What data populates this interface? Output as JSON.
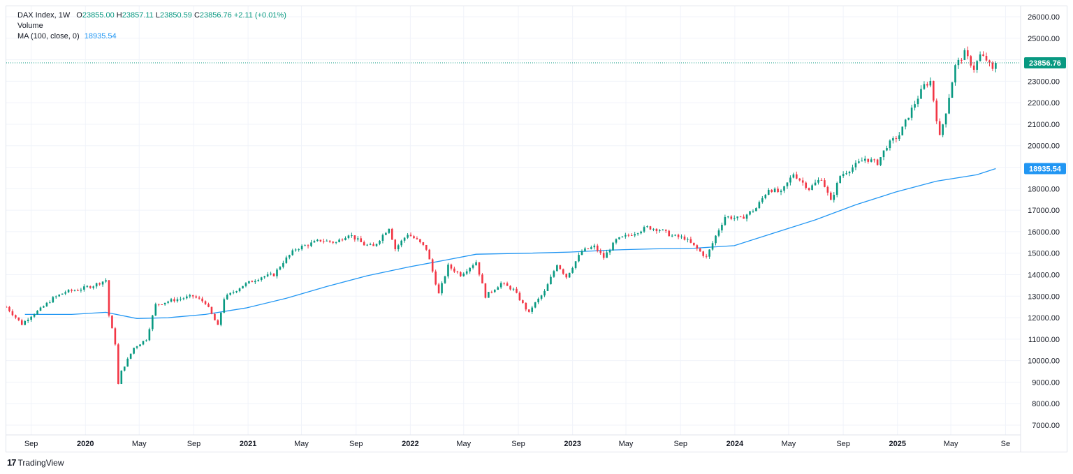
{
  "legend": {
    "symbol": "DAX Index, 1W",
    "open_label": "O",
    "open": "23855.00",
    "high_label": "H",
    "high": "23857.11",
    "low_label": "L",
    "low": "23850.59",
    "close_label": "C",
    "close": "23856.76",
    "change": "+2.11 (+0.01%)",
    "volume_label": "Volume",
    "ma_label": "MA (100, close, 0)",
    "ma_value": "18935.54"
  },
  "brand": {
    "name": "TradingView",
    "logo_glyph": "17"
  },
  "colors": {
    "up": "#089981",
    "down": "#f23645",
    "ma": "#2196f3",
    "grid": "#f0f3fa",
    "last_price": "#089981"
  },
  "chart_data": {
    "type": "candlestick",
    "title": "DAX Index, 1W",
    "price_badge": "23856.76",
    "ma_badge": "18935.54",
    "last_price": 23856.76,
    "ma_last": 18935.54,
    "ylim": [
      6500,
      26500
    ],
    "y_ticks": [
      7000,
      8000,
      9000,
      10000,
      11000,
      12000,
      13000,
      14000,
      15000,
      16000,
      17000,
      18000,
      19000,
      20000,
      21000,
      22000,
      23000,
      24000,
      25000,
      26000
    ],
    "y_tick_labels": [
      "7000.00",
      "8000.00",
      "9000.00",
      "10000.00",
      "11000.00",
      "12000.00",
      "13000.00",
      "14000.00",
      "15000.00",
      "16000.00",
      "17000.00",
      "18000.00",
      "19000.00",
      "20000.00",
      "21000.00",
      "22000.00",
      "23000.00",
      "24000.00",
      "25000.00",
      "26000.00"
    ],
    "x_range": [
      "2019-07-07",
      "2025-10-05"
    ],
    "x_ticks": [
      {
        "date": "2019-09-01",
        "label": "Sep",
        "bold": false
      },
      {
        "date": "2020-01-01",
        "label": "2020",
        "bold": true
      },
      {
        "date": "2020-05-01",
        "label": "May",
        "bold": false
      },
      {
        "date": "2020-09-01",
        "label": "Sep",
        "bold": false
      },
      {
        "date": "2021-01-01",
        "label": "2021",
        "bold": true
      },
      {
        "date": "2021-05-01",
        "label": "May",
        "bold": false
      },
      {
        "date": "2021-09-01",
        "label": "Sep",
        "bold": false
      },
      {
        "date": "2022-01-01",
        "label": "2022",
        "bold": true
      },
      {
        "date": "2022-05-01",
        "label": "May",
        "bold": false
      },
      {
        "date": "2022-09-01",
        "label": "Sep",
        "bold": false
      },
      {
        "date": "2023-01-01",
        "label": "2023",
        "bold": true
      },
      {
        "date": "2023-05-01",
        "label": "May",
        "bold": false
      },
      {
        "date": "2023-09-01",
        "label": "Sep",
        "bold": false
      },
      {
        "date": "2024-01-01",
        "label": "2024",
        "bold": true
      },
      {
        "date": "2024-05-01",
        "label": "May",
        "bold": false
      },
      {
        "date": "2024-09-01",
        "label": "Sep",
        "bold": false
      },
      {
        "date": "2025-01-01",
        "label": "2025",
        "bold": true
      },
      {
        "date": "2025-05-01",
        "label": "May",
        "bold": false
      },
      {
        "date": "2025-09-01",
        "label": "Se",
        "bold": false
      }
    ],
    "close_path": [
      [
        "2019-07-07",
        12500
      ],
      [
        "2019-08-11",
        11700
      ],
      [
        "2019-09-01",
        12100
      ],
      [
        "2019-09-22",
        12400
      ],
      [
        "2019-10-20",
        12900
      ],
      [
        "2019-11-17",
        13200
      ],
      [
        "2019-12-15",
        13300
      ],
      [
        "2020-01-19",
        13500
      ],
      [
        "2020-02-16",
        13750
      ],
      [
        "2020-02-23",
        12100
      ],
      [
        "2020-03-08",
        10800
      ],
      [
        "2020-03-15",
        8900
      ],
      [
        "2020-03-22",
        9500
      ],
      [
        "2020-04-19",
        10600
      ],
      [
        "2020-05-17",
        11000
      ],
      [
        "2020-06-07",
        12600
      ],
      [
        "2020-07-12",
        12800
      ],
      [
        "2020-08-30",
        13000
      ],
      [
        "2020-09-27",
        12700
      ],
      [
        "2020-10-25",
        11600
      ],
      [
        "2020-11-08",
        12900
      ],
      [
        "2020-12-20",
        13500
      ],
      [
        "2021-01-31",
        13900
      ],
      [
        "2021-02-28",
        14000
      ],
      [
        "2021-03-21",
        14600
      ],
      [
        "2021-04-18",
        15200
      ],
      [
        "2021-05-16",
        15400
      ],
      [
        "2021-06-13",
        15600
      ],
      [
        "2021-07-18",
        15500
      ],
      [
        "2021-08-15",
        15900
      ],
      [
        "2021-09-19",
        15400
      ],
      [
        "2021-10-10",
        15300
      ],
      [
        "2021-11-14",
        16200
      ],
      [
        "2021-11-28",
        15200
      ],
      [
        "2021-12-26",
        15900
      ],
      [
        "2022-01-16",
        15600
      ],
      [
        "2022-02-06",
        15200
      ],
      [
        "2022-03-06",
        13100
      ],
      [
        "2022-03-27",
        14400
      ],
      [
        "2022-04-24",
        14000
      ],
      [
        "2022-05-29",
        14600
      ],
      [
        "2022-06-19",
        13000
      ],
      [
        "2022-07-24",
        13600
      ],
      [
        "2022-08-21",
        13300
      ],
      [
        "2022-09-25",
        12200
      ],
      [
        "2022-10-02",
        12500
      ],
      [
        "2022-10-30",
        13200
      ],
      [
        "2022-11-27",
        14500
      ],
      [
        "2022-12-18",
        13900
      ],
      [
        "2023-01-22",
        15100
      ],
      [
        "2023-02-19",
        15300
      ],
      [
        "2023-03-12",
        14800
      ],
      [
        "2023-04-09",
        15600
      ],
      [
        "2023-05-14",
        15900
      ],
      [
        "2023-06-18",
        16200
      ],
      [
        "2023-07-16",
        16100
      ],
      [
        "2023-08-13",
        15800
      ],
      [
        "2023-09-10",
        15700
      ],
      [
        "2023-10-08",
        15200
      ],
      [
        "2023-10-29",
        14800
      ],
      [
        "2023-11-19",
        15800
      ],
      [
        "2023-12-10",
        16700
      ],
      [
        "2024-01-14",
        16600
      ],
      [
        "2024-02-18",
        17100
      ],
      [
        "2024-03-17",
        18000
      ],
      [
        "2024-04-14",
        17800
      ],
      [
        "2024-05-12",
        18700
      ],
      [
        "2024-06-16",
        18000
      ],
      [
        "2024-07-14",
        18500
      ],
      [
        "2024-08-04",
        17400
      ],
      [
        "2024-08-25",
        18600
      ],
      [
        "2024-09-22",
        19000
      ],
      [
        "2024-10-20",
        19400
      ],
      [
        "2024-11-17",
        19200
      ],
      [
        "2024-12-08",
        20000
      ],
      [
        "2025-01-05",
        20500
      ],
      [
        "2025-02-02",
        21700
      ],
      [
        "2025-03-02",
        22800
      ],
      [
        "2025-03-16",
        23000
      ],
      [
        "2025-04-06",
        20400
      ],
      [
        "2025-04-20",
        21600
      ],
      [
        "2025-05-11",
        23700
      ],
      [
        "2025-06-01",
        24300
      ],
      [
        "2025-06-22",
        23600
      ],
      [
        "2025-07-06",
        24200
      ],
      [
        "2025-07-20",
        24000
      ],
      [
        "2025-08-03",
        23500
      ],
      [
        "2025-08-10",
        23856.76
      ]
    ],
    "ma_100": [
      [
        "2019-08-18",
        12150
      ],
      [
        "2019-12-01",
        12150
      ],
      [
        "2020-02-16",
        12250
      ],
      [
        "2020-04-26",
        11960
      ],
      [
        "2020-07-05",
        12000
      ],
      [
        "2020-09-27",
        12150
      ],
      [
        "2020-12-27",
        12450
      ],
      [
        "2021-03-28",
        12900
      ],
      [
        "2021-06-27",
        13450
      ],
      [
        "2021-09-26",
        13950
      ],
      [
        "2021-12-26",
        14350
      ],
      [
        "2022-03-27",
        14700
      ],
      [
        "2022-05-29",
        14950
      ],
      [
        "2022-09-25",
        15000
      ],
      [
        "2022-12-25",
        15050
      ],
      [
        "2023-04-02",
        15150
      ],
      [
        "2023-07-02",
        15200
      ],
      [
        "2023-10-01",
        15230
      ],
      [
        "2023-12-31",
        15350
      ],
      [
        "2024-03-31",
        15950
      ],
      [
        "2024-06-30",
        16550
      ],
      [
        "2024-09-29",
        17250
      ],
      [
        "2024-12-29",
        17850
      ],
      [
        "2025-03-30",
        18350
      ],
      [
        "2025-06-29",
        18650
      ],
      [
        "2025-08-10",
        18935.54
      ]
    ]
  }
}
